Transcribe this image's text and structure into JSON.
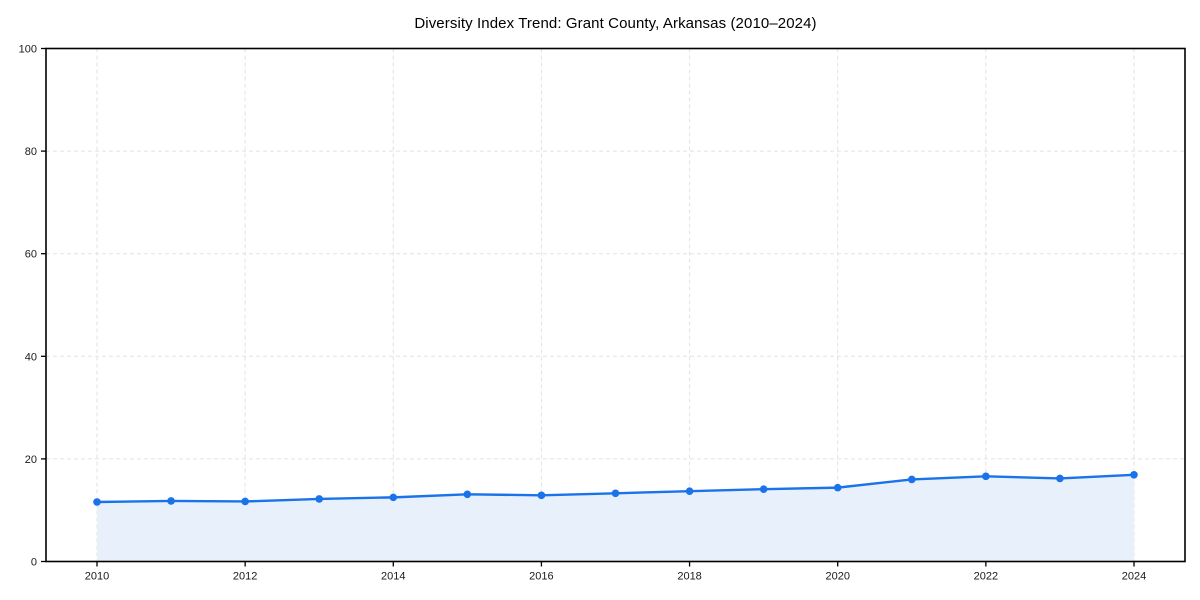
{
  "chart_data": {
    "type": "line",
    "title": "Diversity Index Trend: Grant County, Arkansas (2010–2024)",
    "x": [
      2010,
      2011,
      2012,
      2013,
      2014,
      2015,
      2016,
      2017,
      2018,
      2019,
      2020,
      2021,
      2022,
      2023,
      2024
    ],
    "series": [
      {
        "name": "Diversity Index",
        "values": [
          11.6,
          11.8,
          11.7,
          12.2,
          12.5,
          13.1,
          12.9,
          13.3,
          13.7,
          14.1,
          14.4,
          16.0,
          16.6,
          16.2,
          16.9
        ]
      }
    ],
    "xlabel": "",
    "ylabel": "",
    "ylim": [
      0,
      100
    ],
    "yticks": [
      0,
      20,
      40,
      60,
      80,
      100
    ],
    "xticks": [
      2010,
      2012,
      2014,
      2016,
      2018,
      2020,
      2022,
      2024
    ],
    "grid": "dashed",
    "legend": "none",
    "area_fill": true,
    "marker": "circle",
    "colors": {
      "line": "#1a73e8",
      "marker": "#1a73e8",
      "fill": "#e8f0fc",
      "grid": "#e2e2e2",
      "axis": "#000000",
      "tick_label": "#1a1a1a",
      "title": "#000000"
    }
  }
}
